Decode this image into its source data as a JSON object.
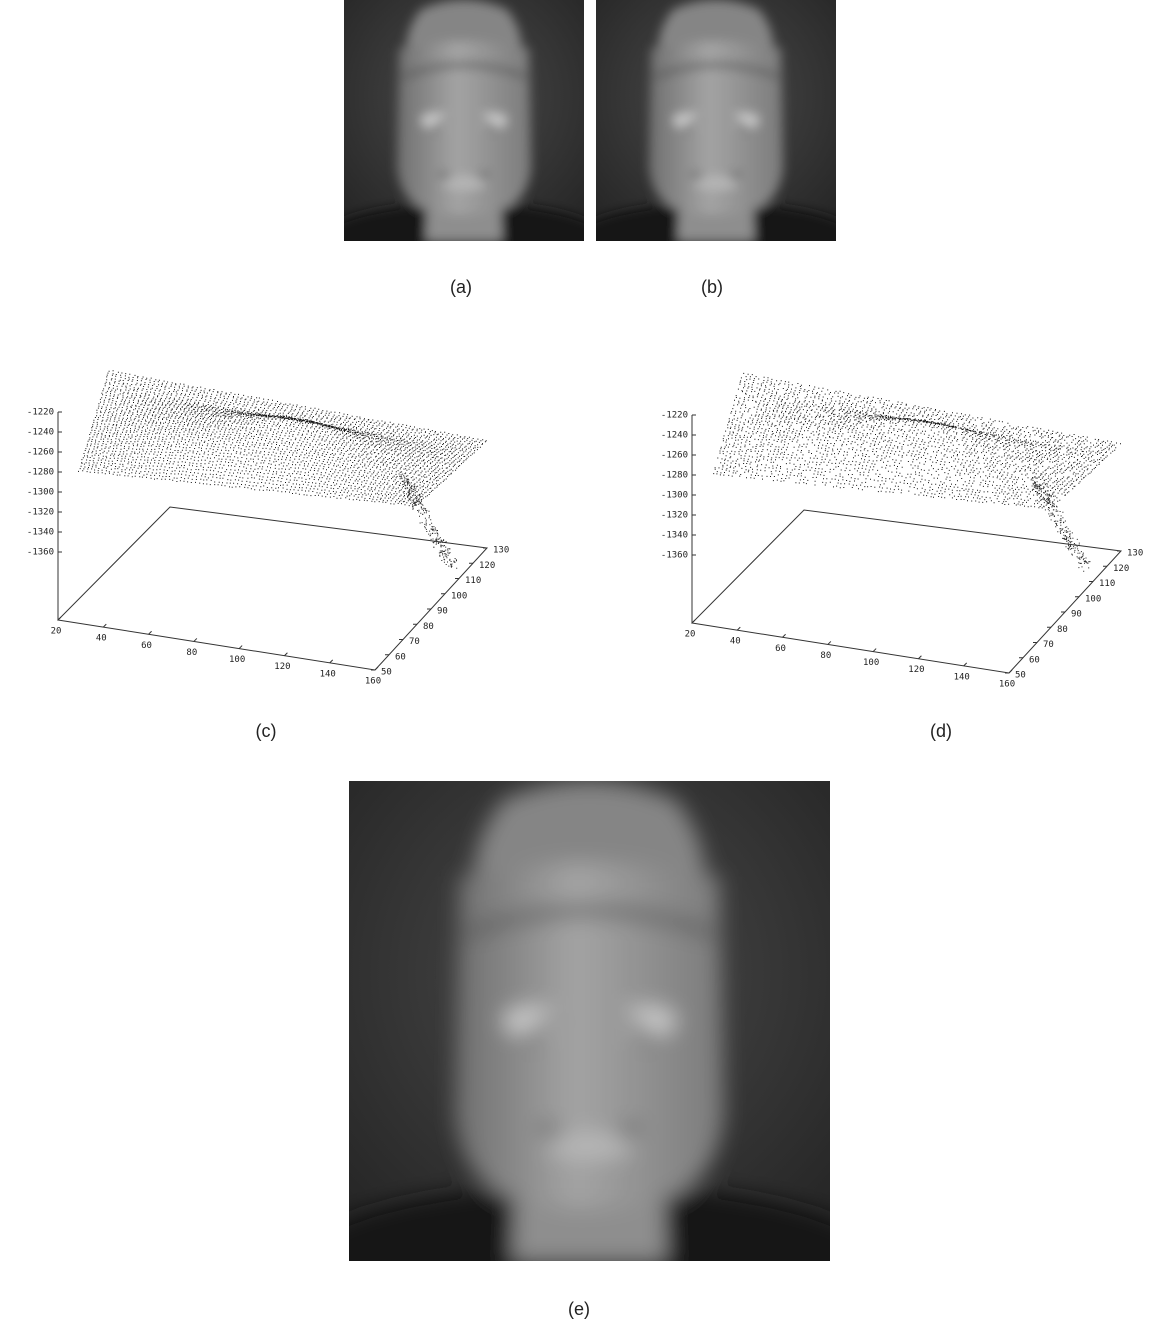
{
  "labels": [
    "(a)",
    "(b)",
    "(c)",
    "(d)",
    "(e)"
  ],
  "plots": [
    {
      "zticks": [
        -1220,
        -1240,
        -1260,
        -1280,
        -1300,
        -1320,
        -1340,
        -1360
      ],
      "xticks": [
        20,
        40,
        60,
        80,
        100,
        120,
        140,
        160
      ],
      "yticks": [
        50,
        60,
        70,
        80,
        90,
        100,
        110,
        120,
        130
      ]
    },
    {
      "zticks": [
        -1220,
        -1240,
        -1260,
        -1280,
        -1300,
        -1320,
        -1340,
        -1360
      ],
      "xticks": [
        20,
        40,
        60,
        80,
        100,
        120,
        140,
        160
      ],
      "yticks": [
        50,
        60,
        70,
        80,
        90,
        100,
        110,
        120,
        130
      ]
    }
  ]
}
